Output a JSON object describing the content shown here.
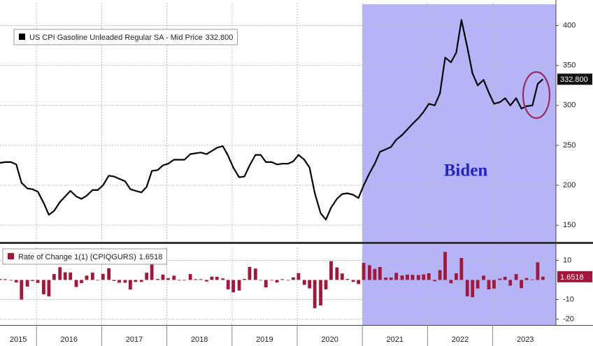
{
  "chart_data": [
    {
      "type": "line",
      "x": [
        2015.44,
        2015.52,
        2015.61,
        2015.69,
        2015.77,
        2015.86,
        2015.94,
        2016.02,
        2016.11,
        2016.19,
        2016.27,
        2016.36,
        2016.44,
        2016.52,
        2016.61,
        2016.69,
        2016.77,
        2016.86,
        2016.94,
        2017.02,
        2017.11,
        2017.19,
        2017.27,
        2017.36,
        2017.44,
        2017.52,
        2017.61,
        2017.69,
        2017.77,
        2017.86,
        2017.94,
        2018.02,
        2018.11,
        2018.19,
        2018.27,
        2018.36,
        2018.44,
        2018.52,
        2018.61,
        2018.69,
        2018.77,
        2018.86,
        2018.94,
        2019.02,
        2019.11,
        2019.19,
        2019.27,
        2019.36,
        2019.44,
        2019.52,
        2019.61,
        2019.69,
        2019.77,
        2019.86,
        2019.94,
        2020.02,
        2020.11,
        2020.19,
        2020.27,
        2020.36,
        2020.44,
        2020.52,
        2020.61,
        2020.69,
        2020.77,
        2020.86,
        2020.94,
        2021.02,
        2021.11,
        2021.19,
        2021.27,
        2021.36,
        2021.44,
        2021.52,
        2021.61,
        2021.69,
        2021.77,
        2021.86,
        2021.94,
        2022.02,
        2022.11,
        2022.19,
        2022.27,
        2022.36,
        2022.44,
        2022.52,
        2022.61,
        2022.69,
        2022.77,
        2022.86,
        2022.94,
        2023.02,
        2023.11,
        2023.19,
        2023.27,
        2023.36,
        2023.44,
        2023.52,
        2023.61,
        2023.69,
        2023.77
      ],
      "series": [
        {
          "name": "US CPI Gasoline Unleaded Regular SA - Mid Price",
          "color": "#000000",
          "values": [
            228,
            229,
            229,
            226,
            203,
            196,
            195,
            192,
            178,
            163,
            168,
            179,
            186,
            193,
            186,
            183,
            187,
            194,
            194,
            200,
            212,
            211,
            208,
            205,
            195,
            193,
            191,
            198,
            218,
            219,
            225,
            227,
            232,
            232,
            232,
            239,
            240,
            241,
            239,
            243,
            247,
            249,
            237,
            222,
            210,
            211,
            225,
            238,
            238,
            229,
            229,
            226,
            227,
            227,
            230,
            238,
            232,
            222,
            190,
            165,
            157,
            172,
            183,
            189,
            190,
            188,
            184,
            200,
            215,
            227,
            242,
            245,
            248,
            257,
            263,
            270,
            277,
            284,
            292,
            302,
            300,
            315,
            360,
            354,
            366,
            407,
            373,
            340,
            325,
            332,
            316,
            302,
            304,
            309,
            300,
            309,
            296,
            299,
            300,
            327,
            332.8
          ],
          "value_labels": [
            null,
            null,
            null,
            null,
            null,
            null,
            null,
            null,
            null,
            null,
            null,
            null,
            null,
            null,
            null,
            null,
            null,
            null,
            null,
            null,
            null,
            null,
            null,
            null,
            null,
            null,
            null,
            null,
            null,
            null,
            null,
            null,
            null,
            null,
            null,
            null,
            null,
            null,
            null,
            null,
            null,
            null,
            null,
            null,
            null,
            null,
            null,
            null,
            null,
            null,
            null,
            null,
            null,
            null,
            null,
            null,
            null,
            null,
            null,
            null,
            null,
            null,
            null,
            null,
            null,
            null,
            null,
            null,
            null,
            null,
            null,
            null,
            null,
            null,
            null,
            null,
            null,
            null,
            null,
            null,
            null,
            null,
            null,
            null,
            null,
            null,
            null,
            null,
            null,
            null,
            null,
            null,
            null,
            null,
            null,
            null,
            null,
            null,
            null,
            null,
            "332.800"
          ]
        }
      ],
      "xlim": [
        2015.44,
        2023.97
      ],
      "ylim": [
        130,
        432
      ],
      "yticks": [
        150,
        200,
        250,
        300,
        350,
        400
      ],
      "xgrid": [
        2016,
        2017,
        2018,
        2019,
        2020,
        2021,
        2022,
        2023
      ],
      "grid": true,
      "shade": {
        "from": 2021.0,
        "label": "Biden",
        "color": "#b4b4f7"
      }
    },
    {
      "type": "bar",
      "x": [
        2015.44,
        2015.52,
        2015.61,
        2015.69,
        2015.77,
        2015.86,
        2015.94,
        2016.02,
        2016.11,
        2016.19,
        2016.27,
        2016.36,
        2016.44,
        2016.52,
        2016.61,
        2016.69,
        2016.77,
        2016.86,
        2016.94,
        2017.02,
        2017.11,
        2017.19,
        2017.27,
        2017.36,
        2017.44,
        2017.52,
        2017.61,
        2017.69,
        2017.77,
        2017.86,
        2017.94,
        2018.02,
        2018.11,
        2018.19,
        2018.27,
        2018.36,
        2018.44,
        2018.52,
        2018.61,
        2018.69,
        2018.77,
        2018.86,
        2018.94,
        2019.02,
        2019.11,
        2019.19,
        2019.27,
        2019.36,
        2019.44,
        2019.52,
        2019.61,
        2019.69,
        2019.77,
        2019.86,
        2019.94,
        2020.02,
        2020.11,
        2020.19,
        2020.27,
        2020.36,
        2020.44,
        2020.52,
        2020.61,
        2020.69,
        2020.77,
        2020.86,
        2020.94,
        2021.02,
        2021.11,
        2021.19,
        2021.27,
        2021.36,
        2021.44,
        2021.52,
        2021.61,
        2021.69,
        2021.77,
        2021.86,
        2021.94,
        2022.02,
        2022.11,
        2022.19,
        2022.27,
        2022.36,
        2022.44,
        2022.52,
        2022.61,
        2022.69,
        2022.77,
        2022.86,
        2022.94,
        2023.02,
        2023.11,
        2023.19,
        2023.27,
        2023.36,
        2023.44,
        2023.52,
        2023.61,
        2023.69,
        2023.77
      ],
      "series": [
        {
          "name": "Rate of Change 1(1) (CPIQGURS)",
          "color": "#a3173b",
          "values": [
            0.5,
            0.4,
            0,
            -1.3,
            -10,
            -3.4,
            -0.5,
            -1.5,
            -7.3,
            -8.4,
            3,
            6.5,
            3.9,
            3.8,
            -3.6,
            -1.6,
            2.2,
            3.7,
            0,
            3.1,
            6,
            -0.5,
            -1.4,
            -1.4,
            -4.9,
            -1,
            -1,
            3.7,
            10.1,
            0.5,
            2.7,
            0.9,
            2.2,
            0,
            0,
            3,
            0.4,
            0.4,
            -0.8,
            1.7,
            1.6,
            0.8,
            -4.8,
            -6.3,
            -5.4,
            0.5,
            6.6,
            5.8,
            0,
            -3.8,
            0,
            -1.3,
            0.4,
            0,
            1.3,
            3.5,
            -2.5,
            -4.3,
            -14.4,
            -13,
            -4.8,
            9.6,
            6.4,
            3.3,
            0.5,
            -1,
            -2.1,
            8.7,
            7.5,
            5.6,
            6.6,
            1.2,
            1.2,
            3.6,
            2.3,
            2.7,
            2.6,
            2.5,
            2.8,
            3.4,
            -0.7,
            5,
            14.3,
            -1.7,
            3.4,
            11.2,
            -8.4,
            -8.8,
            -4.4,
            2.2,
            -4.8,
            -4.4,
            0.7,
            1.6,
            -2.9,
            3,
            -4.2,
            1,
            0.3,
            9,
            1.6518
          ]
        }
      ],
      "xlim": [
        2015.44,
        2023.97
      ],
      "ylim": [
        -23,
        18
      ],
      "yticks": [
        -20,
        -10,
        10
      ],
      "xgrid": [
        2016,
        2017,
        2018,
        2019,
        2020,
        2021,
        2022,
        2023
      ],
      "xticks": [
        {
          "value": 2015.72,
          "label": "2015"
        },
        {
          "value": 2016.5,
          "label": "2016"
        },
        {
          "value": 2017.5,
          "label": "2017"
        },
        {
          "value": 2018.5,
          "label": "2018"
        },
        {
          "value": 2019.5,
          "label": "2019"
        },
        {
          "value": 2020.5,
          "label": "2020"
        },
        {
          "value": 2021.5,
          "label": "2021"
        },
        {
          "value": 2022.5,
          "label": "2022"
        },
        {
          "value": 2023.5,
          "label": "2023"
        }
      ],
      "grid": true
    }
  ]
}
